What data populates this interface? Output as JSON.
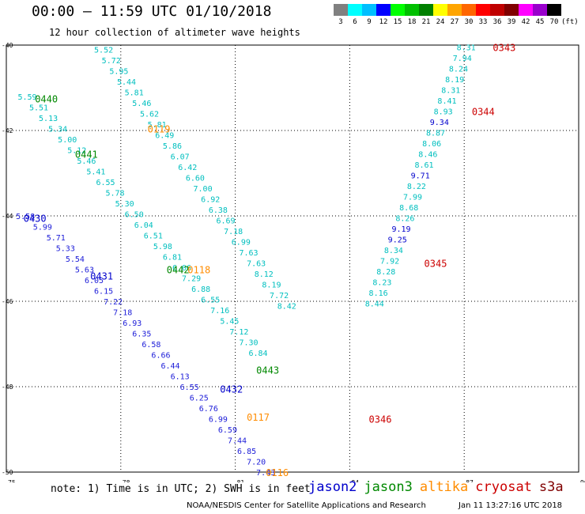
{
  "header": {
    "title": "00:00 – 11:59 UTC 01/10/2018",
    "subtitle": "12 hour collection of altimeter wave heights"
  },
  "colorbar": {
    "labels": [
      "3",
      "6",
      "9",
      "12",
      "15",
      "18",
      "21",
      "24",
      "27",
      "30",
      "33",
      "36",
      "39",
      "42",
      "45",
      "70",
      "(ft)"
    ],
    "colors": [
      "#808080",
      "#00ffff",
      "#00bfff",
      "#0000ff",
      "#00ff00",
      "#00c000",
      "#008000",
      "#ffff00",
      "#ffa500",
      "#ff6600",
      "#ff0000",
      "#c00000",
      "#800000",
      "#ff00ff",
      "#9900cc",
      "#000000"
    ]
  },
  "chart_data": {
    "type": "scatter",
    "xlim": [
      75,
      90
    ],
    "ylim": [
      -50,
      -40
    ],
    "xticks": [
      "75",
      "78",
      "81",
      "84",
      "87",
      "90"
    ],
    "yticks": [
      "-40",
      "-42",
      "-44",
      "-46",
      "-48",
      "-50"
    ],
    "grid": true,
    "series": [
      {
        "name": "jason2",
        "color": "#1c1cd8",
        "labelcolor": "#0000cc",
        "tracks": [
          {
            "label": "0430",
            "lx": 75.45,
            "ly": -44.05,
            "pts": [
              [
                75.5,
                -44.0,
                5.58
              ],
              [
                75.95,
                -44.25,
                5.99
              ],
              [
                76.3,
                -44.5,
                5.71
              ],
              [
                76.55,
                -44.75,
                5.33
              ],
              [
                76.8,
                -45.0,
                5.54
              ],
              [
                77.05,
                -45.25,
                5.63
              ],
              [
                77.3,
                -45.5,
                6.05
              ],
              [
                77.55,
                -45.75,
                6.15
              ],
              [
                77.8,
                -46.0,
                7.22
              ],
              [
                78.05,
                -46.25,
                7.18
              ],
              [
                78.3,
                -46.5,
                6.93
              ],
              [
                78.55,
                -46.75,
                6.35
              ],
              [
                78.8,
                -47.0,
                6.58
              ],
              [
                79.05,
                -47.25,
                6.66
              ],
              [
                79.3,
                -47.5,
                6.44
              ],
              [
                79.55,
                -47.75,
                6.13
              ],
              [
                79.8,
                -48.0,
                6.55
              ],
              [
                80.05,
                -48.25,
                6.25
              ],
              [
                80.3,
                -48.5,
                6.76
              ],
              [
                80.55,
                -48.75,
                6.99
              ],
              [
                80.8,
                -49.0,
                6.59
              ],
              [
                81.05,
                -49.25,
                7.44
              ],
              [
                81.3,
                -49.5,
                6.85
              ],
              [
                81.55,
                -49.75,
                7.2
              ],
              [
                81.8,
                -50.0,
                7.43
              ]
            ]
          },
          {
            "label": "0431",
            "lx": 77.2,
            "ly": -45.4,
            "pts": []
          },
          {
            "label": "0432",
            "lx": 80.6,
            "ly": -48.05,
            "pts": []
          }
        ]
      },
      {
        "name": "jason3",
        "color": "#00bfbf",
        "labelcolor": "#008800",
        "tracks": [
          {
            "label": "0440",
            "lx": 75.75,
            "ly": -41.25,
            "pts": [
              [
                75.55,
                -41.2,
                5.59
              ],
              [
                75.85,
                -41.45,
                5.51
              ],
              [
                76.1,
                -41.7,
                5.13
              ],
              [
                76.35,
                -41.95,
                5.34
              ],
              [
                76.6,
                -42.2,
                5.0
              ],
              [
                76.85,
                -42.45,
                5.12
              ],
              [
                77.1,
                -42.7,
                5.46
              ],
              [
                77.35,
                -42.95,
                5.41
              ],
              [
                77.6,
                -43.2,
                6.55
              ],
              [
                77.85,
                -43.45,
                5.78
              ],
              [
                78.1,
                -43.7,
                5.3
              ],
              [
                78.35,
                -43.95,
                6.5
              ],
              [
                78.6,
                -44.2,
                6.04
              ],
              [
                78.85,
                -44.45,
                6.51
              ],
              [
                79.1,
                -44.7,
                5.98
              ],
              [
                79.35,
                -44.95,
                6.81
              ],
              [
                79.6,
                -45.2,
                6.06
              ],
              [
                79.85,
                -45.45,
                7.29
              ],
              [
                80.1,
                -45.7,
                6.88
              ],
              [
                80.35,
                -45.95,
                6.55
              ],
              [
                80.6,
                -46.2,
                7.16
              ],
              [
                80.85,
                -46.45,
                5.45
              ],
              [
                81.1,
                -46.7,
                7.12
              ],
              [
                81.35,
                -46.95,
                7.3
              ],
              [
                81.6,
                -47.2,
                6.84
              ]
            ]
          },
          {
            "label": "0441",
            "lx": 76.8,
            "ly": -42.55,
            "pts": []
          },
          {
            "label": "0442",
            "lx": 79.2,
            "ly": -45.25,
            "pts": []
          },
          {
            "label": "0443",
            "lx": 81.55,
            "ly": -47.6,
            "pts": []
          }
        ]
      },
      {
        "name": "altika",
        "color": "#00bfbf",
        "labelcolor": "#ff8c00",
        "tracks": [
          {
            "label": "0119",
            "lx": 78.7,
            "ly": -41.95,
            "pts": [
              [
                77.55,
                -40.1,
                5.52
              ],
              [
                77.75,
                -40.35,
                5.72
              ],
              [
                77.95,
                -40.6,
                5.95
              ],
              [
                78.15,
                -40.85,
                5.44
              ],
              [
                78.35,
                -41.1,
                5.81
              ],
              [
                78.55,
                -41.35,
                5.46
              ],
              [
                78.75,
                -41.6,
                5.62
              ],
              [
                78.95,
                -41.85,
                5.81
              ],
              [
                79.15,
                -42.1,
                6.49
              ],
              [
                79.35,
                -42.35,
                5.86
              ],
              [
                79.55,
                -42.6,
                6.07
              ],
              [
                79.75,
                -42.85,
                6.42
              ],
              [
                79.95,
                -43.1,
                6.6
              ],
              [
                80.15,
                -43.35,
                7.0
              ],
              [
                80.35,
                -43.6,
                6.92
              ],
              [
                80.55,
                -43.85,
                6.38
              ],
              [
                80.75,
                -44.1,
                6.69
              ],
              [
                80.95,
                -44.35,
                7.18
              ],
              [
                81.15,
                -44.6,
                6.99
              ],
              [
                81.35,
                -44.85,
                7.63
              ],
              [
                81.55,
                -45.1,
                7.63
              ],
              [
                81.75,
                -45.35,
                8.12
              ],
              [
                81.95,
                -45.6,
                8.19
              ],
              [
                82.15,
                -45.85,
                7.72
              ],
              [
                82.35,
                -46.1,
                8.42
              ]
            ]
          },
          {
            "label": "0118",
            "lx": 79.75,
            "ly": -45.25,
            "pts": []
          },
          {
            "label": "0117",
            "lx": 81.3,
            "ly": -48.7,
            "pts": []
          },
          {
            "label": "0116",
            "lx": 81.8,
            "ly": -50.0,
            "pts": []
          }
        ]
      },
      {
        "name": "cryosat",
        "color": "#00bfbf",
        "labelcolor": "#cc0000",
        "tracks": [
          {
            "label": "0343",
            "lx": 87.75,
            "ly": -40.05,
            "pts": [
              [
                87.05,
                -40.05,
                8.31
              ],
              [
                86.95,
                -40.3,
                7.94
              ],
              [
                86.85,
                -40.55,
                8.24
              ],
              [
                86.75,
                -40.8,
                8.19
              ],
              [
                86.65,
                -41.05,
                8.31
              ],
              [
                86.55,
                -41.3,
                8.41
              ],
              [
                86.45,
                -41.55,
                8.93
              ],
              [
                86.35,
                -41.8,
                9.34
              ],
              [
                86.25,
                -42.05,
                8.87
              ],
              [
                86.15,
                -42.3,
                8.06
              ],
              [
                86.05,
                -42.55,
                8.46
              ],
              [
                85.95,
                -42.8,
                8.61
              ],
              [
                85.85,
                -43.05,
                9.71
              ],
              [
                85.75,
                -43.3,
                8.22
              ],
              [
                85.65,
                -43.55,
                7.99
              ],
              [
                85.55,
                -43.8,
                8.68
              ],
              [
                85.45,
                -44.05,
                8.26
              ],
              [
                85.35,
                -44.3,
                9.19
              ],
              [
                85.25,
                -44.55,
                9.25
              ],
              [
                85.15,
                -44.8,
                8.34
              ],
              [
                85.05,
                -45.05,
                7.92
              ],
              [
                84.95,
                -45.3,
                8.28
              ],
              [
                84.85,
                -45.55,
                8.23
              ],
              [
                84.75,
                -45.8,
                8.16
              ],
              [
                84.65,
                -46.05,
                8.44
              ]
            ]
          },
          {
            "label": "0344",
            "lx": 87.2,
            "ly": -41.55,
            "pts": []
          },
          {
            "label": "0345",
            "lx": 85.95,
            "ly": -45.1,
            "pts": []
          },
          {
            "label": "0346",
            "lx": 84.5,
            "ly": -48.75,
            "pts": []
          }
        ]
      },
      {
        "name": "s3a",
        "color": "#00bfbf",
        "labelcolor": "#800000",
        "tracks": []
      }
    ]
  },
  "footer": {
    "note": "note: 1) Time is in UTC; 2) SWH is in feet",
    "credit": "NOAA/NESDIS Center for Satellite Applications and Research",
    "stamp": "Jan 11 13:27:16 UTC 2018"
  }
}
